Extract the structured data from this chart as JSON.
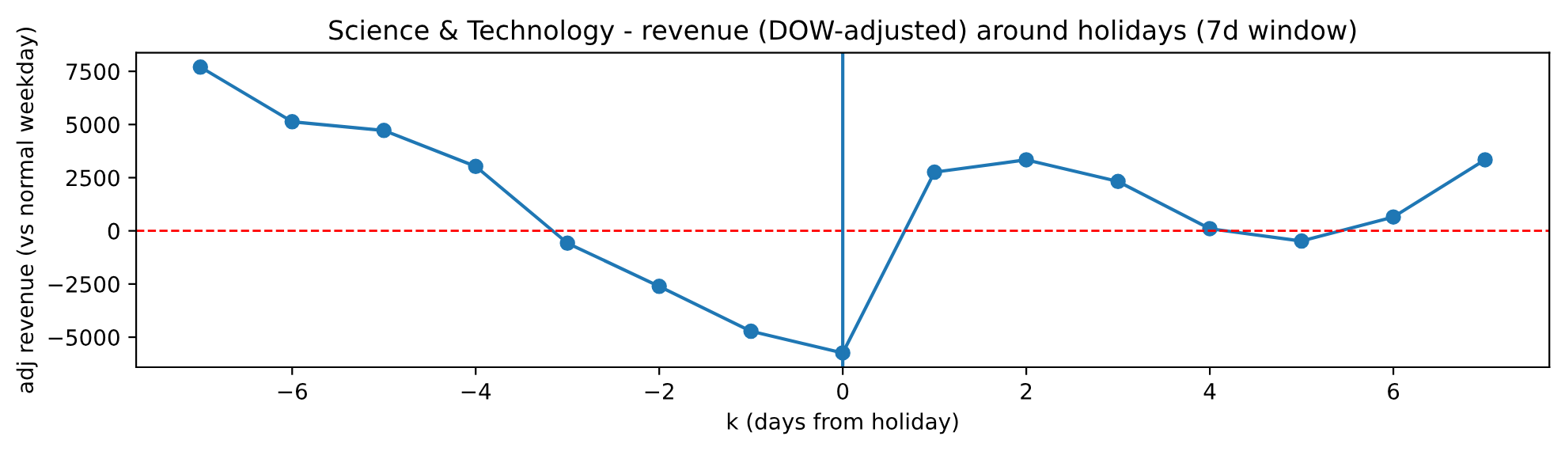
{
  "chart_data": {
    "type": "line",
    "title": "Science & Technology - revenue (DOW-adjusted) around holidays (7d window)",
    "xlabel": "k (days from holiday)",
    "ylabel": "adj revenue (vs normal weekday)",
    "x": [
      -7,
      -6,
      -5,
      -4,
      -3,
      -2,
      -1,
      0,
      1,
      2,
      3,
      4,
      5,
      6,
      7
    ],
    "series": [
      {
        "color": "#1f77b4",
        "values": [
          7700,
          5130,
          4720,
          3030,
          -580,
          -2610,
          -4720,
          -5740,
          2760,
          3340,
          2320,
          100,
          -480,
          650,
          3340
        ]
      }
    ],
    "marker": "circle",
    "line_style": "solid",
    "xlim": [
      -7.7,
      7.7
    ],
    "xticks": [
      {
        "value": -6,
        "label": "−6"
      },
      {
        "value": -4,
        "label": "−4"
      },
      {
        "value": -2,
        "label": "−2"
      },
      0,
      2,
      4,
      6
    ],
    "ylim": [
      -6412,
      8372
    ],
    "yticks": [
      {
        "value": -5000,
        "label": "−5000"
      },
      {
        "value": -2500,
        "label": "−2500"
      },
      0,
      2500,
      5000,
      7500
    ],
    "ref_lines": [
      {
        "axis": "y",
        "value": 0,
        "color": "#ff0000",
        "line_style": "dashed"
      },
      {
        "axis": "x",
        "value": 0,
        "color": "#1f77b4",
        "line_style": "solid"
      }
    ],
    "grid": false,
    "legend": false
  }
}
